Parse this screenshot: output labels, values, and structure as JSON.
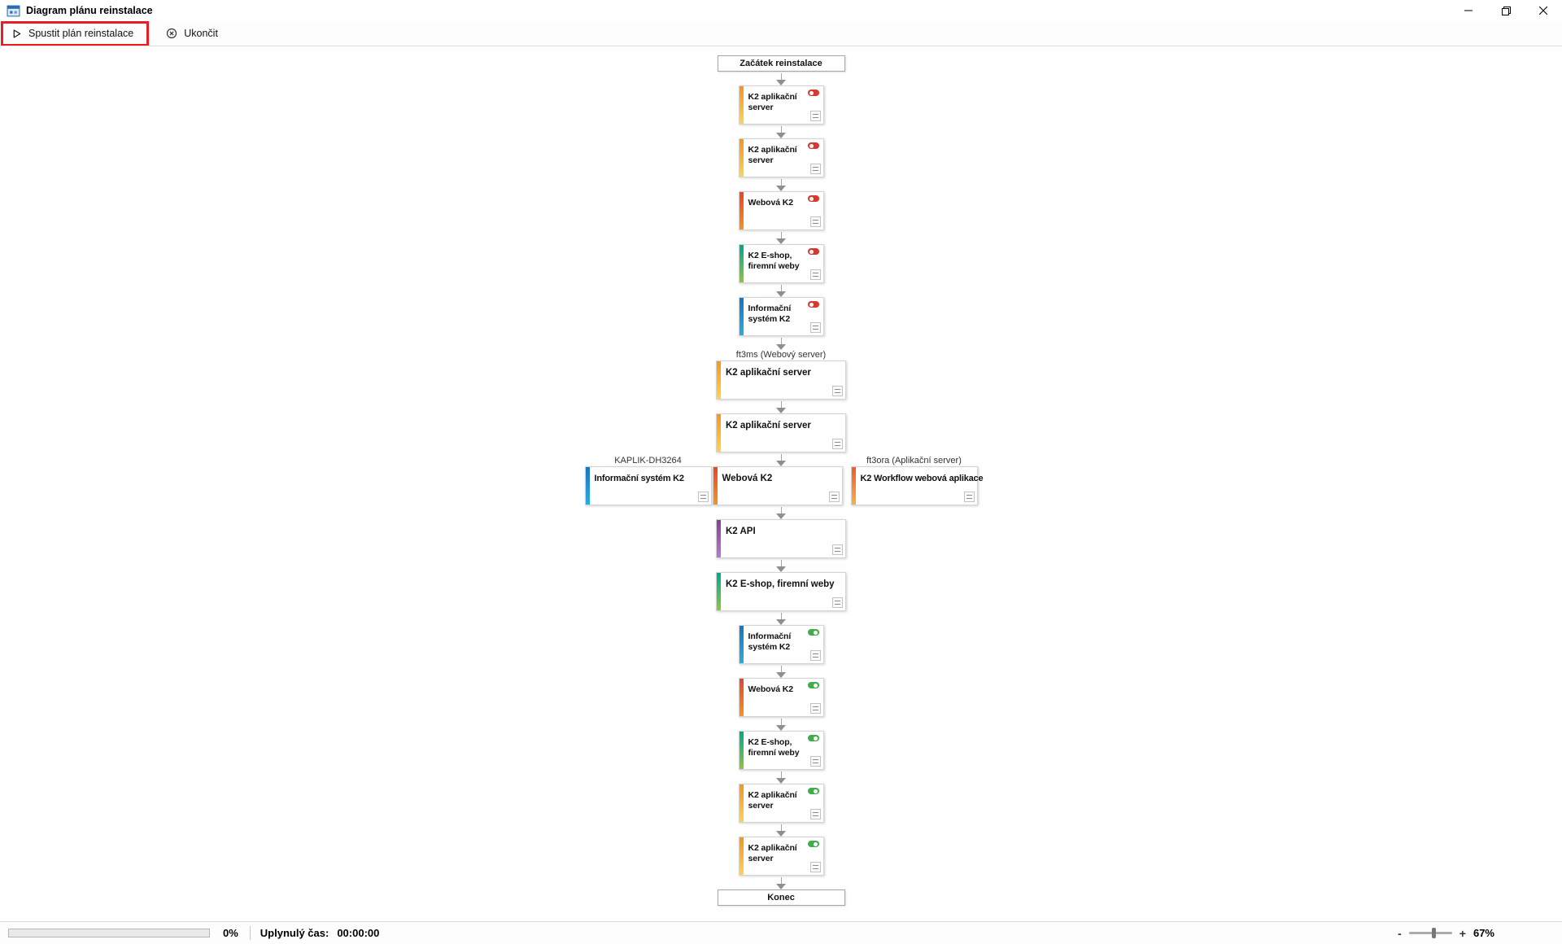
{
  "window": {
    "title": "Diagram plánu reinstalace"
  },
  "toolbar": {
    "run_label": "Spustit plán reinstalace",
    "exit_label": "Ukončit"
  },
  "diagram": {
    "nodes": [
      {
        "kind": "terminal",
        "label": "Začátek reinstalace"
      },
      {
        "kind": "card",
        "width": "narrow",
        "label": "K2 aplikační server",
        "stripe_from": "#F7941E",
        "stripe_to": "#FFD34D",
        "toggle": "off"
      },
      {
        "kind": "card",
        "width": "narrow",
        "label": "K2 aplikační server",
        "stripe_from": "#F7941E",
        "stripe_to": "#FFD34D",
        "toggle": "off"
      },
      {
        "kind": "card",
        "width": "narrow",
        "label": "Webová K2",
        "stripe_from": "#E8442C",
        "stripe_to": "#F7941E",
        "toggle": "off"
      },
      {
        "kind": "card",
        "width": "narrow",
        "label": "K2 E-shop, firemní weby",
        "stripe_from": "#00A88E",
        "stripe_to": "#8DC63F",
        "toggle": "off"
      },
      {
        "kind": "card",
        "width": "narrow",
        "label": "Informační systém K2",
        "stripe_from": "#1B75BC",
        "stripe_to": "#29ABE2",
        "toggle": "off"
      },
      {
        "kind": "card",
        "width": "wide",
        "group_label": "ft3ms (Webový server)",
        "label": "K2 aplikační server",
        "stripe_from": "#F7941E",
        "stripe_to": "#FFD34D",
        "toggle": "none"
      },
      {
        "kind": "card",
        "width": "wide",
        "label": "K2 aplikační server",
        "stripe_from": "#F7941E",
        "stripe_to": "#FFD34D",
        "toggle": "none"
      },
      {
        "kind": "row",
        "left": {
          "group_label": "KAPLIK-DH3264",
          "label": "Informační systém K2",
          "stripe_from": "#1B75BC",
          "stripe_to": "#29ABE2",
          "toggle": "none"
        },
        "center": {
          "label": "Webová K2",
          "stripe_from": "#E8442C",
          "stripe_to": "#F7941E",
          "toggle": "none"
        },
        "right": {
          "group_label": "ft3ora (Aplikační server)",
          "label": "K2 Workflow webová aplikace",
          "stripe_from": "#F05A28",
          "stripe_to": "#FBB040",
          "toggle": "none"
        }
      },
      {
        "kind": "card",
        "width": "wide",
        "label": "K2 API",
        "stripe_from": "#833F9B",
        "stripe_to": "#B57BC8",
        "toggle": "none"
      },
      {
        "kind": "card",
        "width": "wide",
        "label": "K2 E-shop, firemní weby",
        "stripe_from": "#00A88E",
        "stripe_to": "#8DC63F",
        "toggle": "none"
      },
      {
        "kind": "card",
        "width": "narrow",
        "label": "Informační systém K2",
        "stripe_from": "#1B75BC",
        "stripe_to": "#29ABE2",
        "toggle": "on"
      },
      {
        "kind": "card",
        "width": "narrow",
        "label": "Webová K2",
        "stripe_from": "#E8442C",
        "stripe_to": "#F7941E",
        "toggle": "on"
      },
      {
        "kind": "card",
        "width": "narrow",
        "label": "K2 E-shop, firemní weby",
        "stripe_from": "#00A88E",
        "stripe_to": "#8DC63F",
        "toggle": "on"
      },
      {
        "kind": "card",
        "width": "narrow",
        "label": "K2 aplikační server",
        "stripe_from": "#F7941E",
        "stripe_to": "#FFD34D",
        "toggle": "on"
      },
      {
        "kind": "card",
        "width": "narrow",
        "label": "K2 aplikační server",
        "stripe_from": "#F7941E",
        "stripe_to": "#FFD34D",
        "toggle": "on"
      },
      {
        "kind": "terminal",
        "label": "Konec"
      }
    ]
  },
  "statusbar": {
    "progress_percent": "0%",
    "elapsed_label": "Uplynulý čas:",
    "elapsed_value": "00:00:00",
    "zoom_out": "-",
    "zoom_in": "+",
    "zoom_value": "67%"
  },
  "colors": {
    "annotation_red": "#EC1C24",
    "toggle_off": "#D43A2F",
    "toggle_on": "#3FAE49",
    "arrow_gray": "#8F8F8F"
  },
  "icons": {
    "app_icon": "blue-diagram-window",
    "play_icon": "outline-play-triangle",
    "cancel_icon": "circle-x",
    "minimize_icon": "horizontal-line",
    "maximize_restore_icon": "overlapping-squares",
    "close_icon": "x-cross",
    "toggle_off_icon": "red-switch-knob-left",
    "toggle_on_icon": "green-switch-knob-right",
    "flow_arrow": "down-triangle"
  }
}
